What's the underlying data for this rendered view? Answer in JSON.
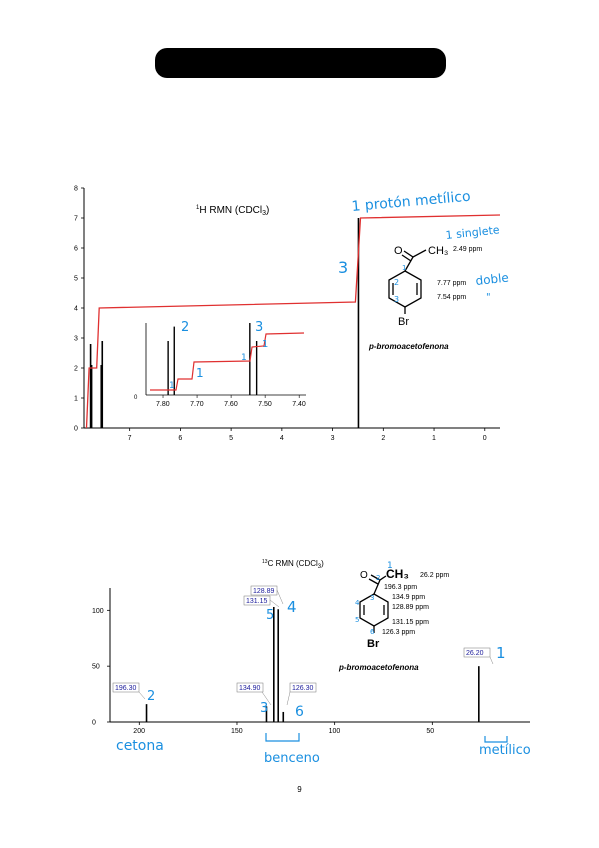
{
  "page": {
    "number": "9"
  },
  "colors": {
    "annotation": "#1a8fe0",
    "integral": "#e03030",
    "peak_label": "#1a1a9a"
  },
  "h_spectrum": {
    "title_sup": "1",
    "title_main": "H RMN (CDCl",
    "title_sub": "3",
    "title_end": ")",
    "compound": "p-bromoacetofenona",
    "shift_methyl": "2.49 ppm",
    "shift_ortho": "7.77 ppm",
    "shift_meta": "7.54 ppm",
    "bromine": "Br",
    "methyl_group": "CH₃",
    "annotations": {
      "proton": "1 protón metílico",
      "singlete": "1 singlete",
      "doble": "doble",
      "doble_ditto": "\"",
      "integral_methyl": "3",
      "inset_2": "2",
      "inset_3": "3",
      "inset_1a": "1",
      "inset_1b": "1",
      "inset_1c": "1",
      "inset_1d": "1",
      "struct_1": "1",
      "struct_2": "2",
      "struct_3": "3"
    }
  },
  "c_spectrum": {
    "title_sup": "13",
    "title_main": "C RMN (CDCl",
    "title_sub": "3",
    "title_end": ")",
    "compound": "p-bromoacetofenona",
    "methyl_group": "CH₃",
    "bromine": "Br",
    "shifts_list": [
      "26.2 ppm",
      "196.3 ppm",
      "134.9 ppm",
      "128.89 ppm",
      "131.15 ppm",
      "126.3 ppm"
    ],
    "peak_labels": [
      "196.30",
      "134.90",
      "131.15",
      "128.89",
      "126.30",
      "26.20"
    ],
    "annotations": {
      "cetona": "cetona",
      "benceno": "benceno",
      "metilico": "metílico",
      "n1": "1",
      "n2": "2",
      "n3": "3",
      "n4": "4",
      "n5": "5",
      "n6": "6",
      "s1": "1",
      "s2": "2",
      "s3": "3",
      "s4": "4",
      "s5": "5",
      "s6": "6"
    }
  },
  "chart_data": [
    {
      "type": "line",
      "title": "1H RMN (CDCl3)",
      "xlabel": "",
      "ylabel": "",
      "x_axis": {
        "range": [
          7.9,
          -0.3
        ],
        "ticks": [
          7,
          6,
          5,
          4,
          3,
          2,
          1,
          0
        ],
        "reversed": true
      },
      "y_axis": {
        "range": [
          0,
          8
        ],
        "ticks": [
          0,
          1,
          2,
          3,
          4,
          5,
          6,
          7,
          8
        ]
      },
      "peaks": [
        {
          "x": 7.77,
          "height": 2.8
        },
        {
          "x": 7.75,
          "height": 2.1
        },
        {
          "x": 7.56,
          "height": 2.1
        },
        {
          "x": 7.54,
          "height": 2.9
        },
        {
          "x": 2.49,
          "height": 7.0
        }
      ],
      "integral": [
        [
          7.85,
          0
        ],
        [
          7.8,
          2.0
        ],
        [
          7.65,
          2.0
        ],
        [
          7.6,
          4.0
        ],
        [
          2.55,
          4.2
        ],
        [
          2.45,
          7.0
        ],
        [
          -0.3,
          7.1
        ]
      ],
      "inset": {
        "x_range": [
          7.85,
          7.38
        ],
        "ticks": [
          "7.80",
          "7.70",
          "7.60",
          "7.50",
          "7.40"
        ],
        "peaks": [
          {
            "x": 7.785,
            "height": 0.75
          },
          {
            "x": 7.767,
            "height": 0.95
          },
          {
            "x": 7.545,
            "height": 1.0
          },
          {
            "x": 7.525,
            "height": 0.75
          }
        ]
      }
    },
    {
      "type": "bar",
      "title": "13C RMN (CDCl3)",
      "xlabel": "",
      "ylabel": "",
      "x_axis": {
        "range": [
          215,
          0
        ],
        "ticks": [
          200,
          150,
          100,
          50
        ],
        "reversed": true
      },
      "y_axis": {
        "range": [
          0,
          120
        ],
        "ticks": [
          0,
          50,
          100
        ]
      },
      "peaks": [
        {
          "x": 196.3,
          "height": 16
        },
        {
          "x": 134.9,
          "height": 14
        },
        {
          "x": 131.15,
          "height": 103
        },
        {
          "x": 128.89,
          "height": 101
        },
        {
          "x": 126.3,
          "height": 9
        },
        {
          "x": 26.2,
          "height": 50
        }
      ]
    }
  ]
}
